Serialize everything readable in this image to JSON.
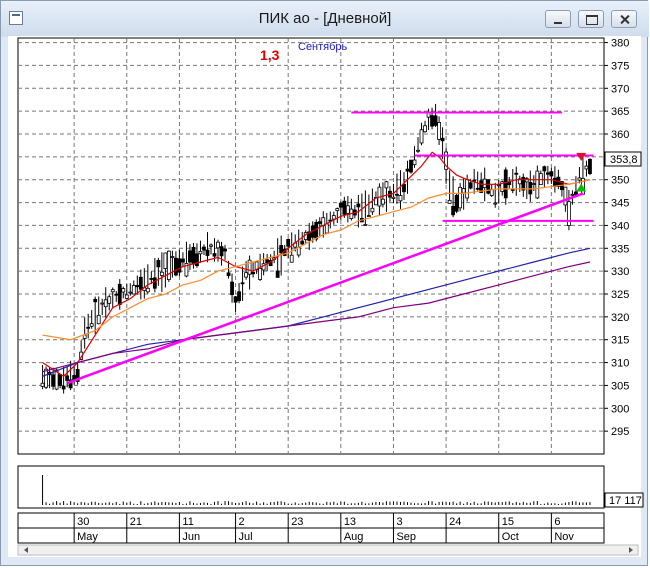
{
  "window": {
    "title": "ПИК ао - [Дневной]"
  },
  "colors": {
    "candle": "#000000",
    "ma_short": "#e00000",
    "ma_medium": "#ff8c2a",
    "ma_long1": "#2020b0",
    "ma_long2": "#800080",
    "lines": "#ff00ff",
    "marker_down": "#e0102a",
    "marker_up": "#00c000"
  },
  "annotations": {
    "ratio_label": "1,3",
    "month_note": "Сентябрь"
  },
  "chart_data": {
    "type": "candlestick",
    "title": "ПИК ао",
    "interval": "Дневной",
    "y_ticks": [
      295,
      300,
      305,
      310,
      315,
      320,
      325,
      330,
      335,
      340,
      345,
      350,
      355,
      360,
      365,
      370,
      375,
      380
    ],
    "ylim": [
      290,
      381
    ],
    "x_labels": [
      {
        "day": "30",
        "month": "May"
      },
      {
        "day": "21",
        "month": ""
      },
      {
        "day": "11",
        "month": "Jun"
      },
      {
        "day": "2",
        "month": "Jul"
      },
      {
        "day": "23",
        "month": ""
      },
      {
        "day": "13",
        "month": "Aug"
      },
      {
        "day": "3",
        "month": "Sep"
      },
      {
        "day": "24",
        "month": ""
      },
      {
        "day": "15",
        "month": "Oct"
      },
      {
        "day": "6",
        "month": "Nov"
      }
    ],
    "last_price_label": "353,8",
    "volume_label": "17 117",
    "price_path": [
      [
        0,
        307
      ],
      [
        5,
        306
      ],
      [
        10,
        308
      ],
      [
        12,
        317
      ],
      [
        15,
        321
      ],
      [
        20,
        324
      ],
      [
        25,
        326
      ],
      [
        30,
        328
      ],
      [
        33,
        330
      ],
      [
        38,
        332
      ],
      [
        42,
        333
      ],
      [
        47,
        335
      ],
      [
        52,
        334
      ],
      [
        55,
        323
      ],
      [
        58,
        330
      ],
      [
        62,
        331
      ],
      [
        66,
        333
      ],
      [
        70,
        335
      ],
      [
        74,
        337
      ],
      [
        78,
        339
      ],
      [
        82,
        341
      ],
      [
        86,
        344
      ],
      [
        90,
        343
      ],
      [
        95,
        346
      ],
      [
        100,
        347
      ],
      [
        103,
        349
      ],
      [
        106,
        355
      ],
      [
        108,
        360
      ],
      [
        110,
        363
      ],
      [
        112,
        364
      ],
      [
        114,
        358
      ],
      [
        116,
        349
      ],
      [
        118,
        345
      ],
      [
        120,
        347
      ],
      [
        123,
        350
      ],
      [
        126,
        349
      ],
      [
        129,
        347
      ],
      [
        132,
        349
      ],
      [
        135,
        350
      ],
      [
        138,
        348
      ],
      [
        141,
        350
      ],
      [
        144,
        351
      ],
      [
        147,
        350
      ],
      [
        150,
        344
      ],
      [
        153,
        351
      ],
      [
        156,
        353
      ]
    ],
    "ma_short": [
      [
        0,
        310
      ],
      [
        6,
        307
      ],
      [
        10,
        310
      ],
      [
        15,
        316
      ],
      [
        20,
        322
      ],
      [
        25,
        324
      ],
      [
        30,
        327
      ],
      [
        35,
        329
      ],
      [
        40,
        331
      ],
      [
        45,
        332
      ],
      [
        50,
        333
      ],
      [
        55,
        331
      ],
      [
        60,
        330
      ],
      [
        65,
        332
      ],
      [
        70,
        335
      ],
      [
        75,
        338
      ],
      [
        80,
        340
      ],
      [
        85,
        342
      ],
      [
        90,
        343
      ],
      [
        95,
        346
      ],
      [
        100,
        347
      ],
      [
        104,
        350
      ],
      [
        108,
        353
      ],
      [
        111,
        356
      ],
      [
        113,
        355
      ],
      [
        115,
        353
      ],
      [
        118,
        351
      ],
      [
        121,
        350
      ],
      [
        125,
        349
      ],
      [
        130,
        349
      ],
      [
        135,
        350
      ],
      [
        140,
        350
      ],
      [
        145,
        350
      ],
      [
        150,
        349
      ],
      [
        156,
        350
      ]
    ],
    "ma_medium": [
      [
        0,
        316
      ],
      [
        8,
        315
      ],
      [
        15,
        317
      ],
      [
        20,
        320
      ],
      [
        25,
        322
      ],
      [
        30,
        324
      ],
      [
        35,
        325
      ],
      [
        40,
        327
      ],
      [
        45,
        328
      ],
      [
        50,
        330
      ],
      [
        55,
        331
      ],
      [
        60,
        332
      ],
      [
        65,
        333
      ],
      [
        70,
        334
      ],
      [
        75,
        336
      ],
      [
        80,
        338
      ],
      [
        85,
        339
      ],
      [
        90,
        341
      ],
      [
        95,
        342
      ],
      [
        100,
        343
      ],
      [
        105,
        344
      ],
      [
        110,
        346
      ],
      [
        115,
        347
      ],
      [
        120,
        347
      ],
      [
        130,
        348
      ],
      [
        140,
        348
      ],
      [
        150,
        349
      ],
      [
        156,
        350
      ]
    ],
    "ma_long1": [
      [
        0,
        307
      ],
      [
        10,
        310
      ],
      [
        20,
        312
      ],
      [
        30,
        314
      ],
      [
        40,
        315
      ],
      [
        50,
        316
      ],
      [
        60,
        317
      ],
      [
        70,
        318
      ],
      [
        80,
        320
      ],
      [
        90,
        322
      ],
      [
        100,
        324
      ],
      [
        110,
        326
      ],
      [
        120,
        328
      ],
      [
        130,
        330
      ],
      [
        140,
        332
      ],
      [
        150,
        334
      ],
      [
        156,
        335
      ]
    ],
    "ma_long2": [
      [
        0,
        308
      ],
      [
        10,
        310
      ],
      [
        20,
        312
      ],
      [
        30,
        313
      ],
      [
        40,
        315
      ],
      [
        50,
        316
      ],
      [
        60,
        317
      ],
      [
        70,
        318
      ],
      [
        80,
        319
      ],
      [
        90,
        320
      ],
      [
        100,
        322
      ],
      [
        110,
        323
      ],
      [
        120,
        325
      ],
      [
        130,
        327
      ],
      [
        140,
        329
      ],
      [
        150,
        331
      ],
      [
        156,
        332
      ]
    ],
    "trendline": {
      "from": [
        7,
        305.5
      ],
      "to": [
        154,
        347
      ]
    },
    "horizontal_levels": [
      {
        "from": 88,
        "to": 148,
        "level": 364.7
      },
      {
        "from": 106,
        "to": 157,
        "level": 355.3
      },
      {
        "from": 114,
        "to": 157,
        "level": 341
      }
    ],
    "x_range": [
      -7,
      160
    ],
    "label_positions": [
      9,
      24,
      39,
      55,
      70,
      85,
      100,
      115,
      130,
      145
    ]
  }
}
